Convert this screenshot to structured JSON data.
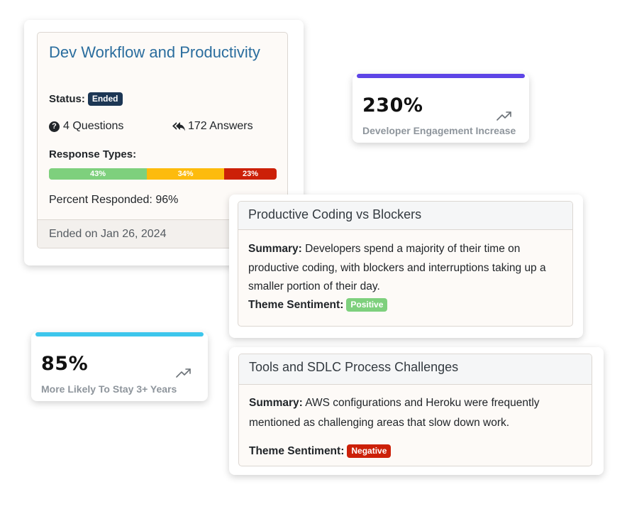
{
  "survey": {
    "title": "Dev Workflow and Productivity",
    "status_label": "Status:",
    "status_value": "Ended",
    "questions": "4 Questions",
    "answers": "172 Answers",
    "response_types_label": "Response Types:",
    "response_segments": [
      {
        "label": "43%",
        "value": 43,
        "color": "#7ed07d"
      },
      {
        "label": "34%",
        "value": 34,
        "color": "#fdbb0d"
      },
      {
        "label": "23%",
        "value": 23,
        "color": "#cc2008"
      }
    ],
    "percent_responded": "Percent Responded: 96%",
    "ended_on": "Ended on Jan 26, 2024"
  },
  "metrics": {
    "engagement": {
      "value": "230%",
      "caption": "Developer Engagement Increase",
      "accent_color": "#5d45e6",
      "icon": "trending-up-icon"
    },
    "stay": {
      "value": "85%",
      "caption": "More Likely To Stay 3+ Years",
      "accent_color": "#3dc6ec",
      "icon": "trending-up-icon"
    }
  },
  "themes": [
    {
      "title": "Productive Coding vs Blockers",
      "summary_label": "Summary:",
      "summary": "Developers spend a majority of their time on productive coding, with blockers and interruptions taking up a smaller portion of their day.",
      "sentiment_label": "Theme Sentiment:",
      "sentiment": "Positive",
      "sentiment_color": "#7ed07d"
    },
    {
      "title": "Tools and SDLC Process Challenges",
      "summary_label": "Summary:",
      "summary": "AWS configurations and Heroku were frequently mentioned as challenging areas that slow down work.",
      "sentiment_label": "Theme Sentiment:",
      "sentiment": "Negative",
      "sentiment_color": "#cc2008"
    }
  ]
}
